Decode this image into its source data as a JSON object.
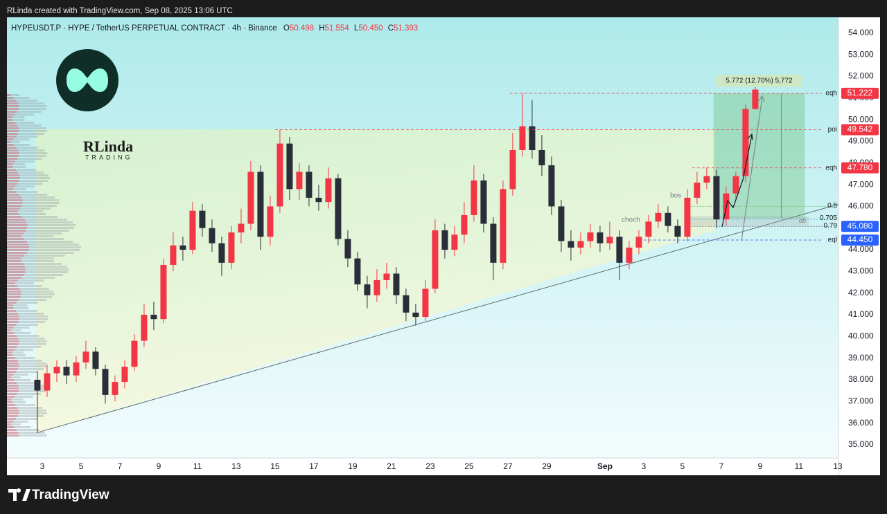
{
  "header": {
    "credit": "RLinda created with TradingView.com, Sep 08, 2025 13:06 UTC"
  },
  "logo": {
    "name": "RLinda",
    "sub": "TRADING"
  },
  "footer": {
    "brand": "TradingView"
  },
  "chart_data": {
    "type": "candlestick",
    "title": "HYPEUSDT.P · HYPE / TetherUS PERPETUAL CONTRACT · 4h · Binance",
    "ohlc": [
      {
        "key": "O",
        "value": "50.498"
      },
      {
        "key": "H",
        "value": "51.554"
      },
      {
        "key": "L",
        "value": "50.450"
      },
      {
        "key": "C",
        "value": "51.393"
      }
    ],
    "up_color": "#f23645",
    "down_color": "#2a2e39",
    "x": [
      1.75,
      2.25,
      2.75,
      3.25,
      3.75,
      4.25,
      4.75,
      5.25,
      5.75,
      6.25,
      6.75,
      7.25,
      7.75,
      8.25,
      8.75,
      9.25,
      9.75,
      10.25,
      10.75,
      11.25,
      11.75,
      12.25,
      12.75,
      13.25,
      13.75,
      14.25,
      14.75,
      15.25,
      15.75,
      16.25,
      16.75,
      17.25,
      17.75,
      18.25,
      18.75,
      19.25,
      19.75,
      20.25,
      20.75,
      21.25,
      21.75,
      22.25,
      22.75,
      23.25,
      23.75,
      24.25,
      24.75,
      25.25,
      25.75,
      26.25,
      26.75,
      27.25,
      27.75,
      28.25,
      28.75,
      29.25,
      29.75,
      30.25,
      30.75,
      31.25,
      31.75,
      32.25,
      32.75,
      33.25,
      33.75,
      34.25,
      34.75,
      35.25,
      35.75,
      36.25,
      36.75,
      37.25,
      37.75,
      38.25,
      38.75
    ],
    "candles": [
      [
        38.0,
        38.4,
        35.6,
        37.5
      ],
      [
        37.5,
        38.7,
        37.2,
        38.3
      ],
      [
        38.3,
        38.9,
        37.9,
        38.6
      ],
      [
        38.6,
        38.9,
        37.8,
        38.2
      ],
      [
        38.2,
        39.1,
        37.9,
        38.8
      ],
      [
        38.8,
        39.8,
        38.5,
        39.3
      ],
      [
        39.3,
        39.5,
        38.2,
        38.5
      ],
      [
        38.5,
        38.7,
        36.9,
        37.3
      ],
      [
        37.3,
        38.2,
        37.0,
        37.9
      ],
      [
        37.9,
        38.9,
        37.6,
        38.6
      ],
      [
        38.6,
        40.1,
        38.4,
        39.8
      ],
      [
        39.8,
        41.5,
        39.5,
        41.0
      ],
      [
        41.0,
        41.6,
        40.3,
        40.8
      ],
      [
        40.8,
        43.6,
        40.6,
        43.3
      ],
      [
        43.3,
        44.8,
        43.0,
        44.2
      ],
      [
        44.2,
        44.6,
        43.5,
        44.0
      ],
      [
        44.0,
        46.2,
        43.8,
        45.8
      ],
      [
        45.8,
        46.1,
        44.6,
        45.0
      ],
      [
        45.0,
        45.4,
        43.9,
        44.3
      ],
      [
        44.3,
        44.6,
        42.8,
        43.4
      ],
      [
        43.4,
        45.1,
        43.1,
        44.8
      ],
      [
        44.8,
        45.9,
        44.3,
        45.2
      ],
      [
        45.2,
        48.1,
        44.9,
        47.6
      ],
      [
        47.6,
        47.9,
        44.0,
        44.6
      ],
      [
        44.6,
        46.5,
        44.2,
        46.0
      ],
      [
        46.0,
        49.54,
        45.7,
        48.9
      ],
      [
        48.9,
        49.2,
        46.3,
        46.8
      ],
      [
        46.8,
        48.0,
        46.3,
        47.6
      ],
      [
        47.6,
        47.9,
        46.0,
        46.4
      ],
      [
        46.4,
        47.0,
        45.8,
        46.2
      ],
      [
        46.2,
        47.8,
        45.9,
        47.3
      ],
      [
        47.3,
        47.5,
        44.2,
        44.5
      ],
      [
        44.5,
        44.9,
        43.2,
        43.6
      ],
      [
        43.6,
        43.9,
        42.1,
        42.4
      ],
      [
        42.4,
        42.8,
        41.3,
        41.9
      ],
      [
        41.9,
        43.1,
        41.6,
        42.6
      ],
      [
        42.6,
        43.4,
        42.2,
        42.9
      ],
      [
        42.9,
        43.2,
        41.5,
        41.9
      ],
      [
        41.9,
        42.2,
        40.7,
        41.1
      ],
      [
        41.1,
        41.5,
        40.5,
        40.9
      ],
      [
        40.9,
        42.6,
        40.7,
        42.2
      ],
      [
        42.2,
        45.4,
        42.0,
        44.9
      ],
      [
        44.9,
        45.2,
        43.6,
        44.0
      ],
      [
        44.0,
        45.1,
        43.7,
        44.7
      ],
      [
        44.7,
        46.2,
        44.3,
        45.6
      ],
      [
        45.6,
        47.9,
        45.3,
        47.2
      ],
      [
        47.2,
        47.5,
        44.8,
        45.2
      ],
      [
        45.2,
        45.5,
        42.6,
        43.4
      ],
      [
        43.4,
        47.2,
        43.1,
        46.8
      ],
      [
        46.8,
        49.4,
        46.5,
        48.6
      ],
      [
        48.6,
        51.222,
        48.3,
        49.7
      ],
      [
        49.7,
        50.9,
        48.2,
        48.6
      ],
      [
        48.6,
        49.3,
        47.4,
        47.9
      ],
      [
        47.9,
        48.3,
        45.6,
        46.0
      ],
      [
        46.0,
        46.3,
        43.9,
        44.4
      ],
      [
        44.4,
        44.9,
        43.5,
        44.1
      ],
      [
        44.1,
        44.8,
        43.8,
        44.4
      ],
      [
        44.4,
        45.2,
        44.1,
        44.8
      ],
      [
        44.8,
        45.1,
        43.9,
        44.3
      ],
      [
        44.3,
        45.3,
        44.0,
        44.6
      ],
      [
        44.6,
        44.9,
        42.6,
        43.4
      ],
      [
        43.4,
        44.4,
        43.1,
        44.1
      ],
      [
        44.1,
        44.9,
        43.8,
        44.6
      ],
      [
        44.6,
        45.6,
        44.3,
        45.3
      ],
      [
        45.3,
        46.1,
        45.0,
        45.7
      ],
      [
        45.7,
        46.0,
        44.8,
        45.1
      ],
      [
        45.1,
        45.4,
        44.3,
        44.6
      ],
      [
        44.6,
        46.8,
        44.4,
        46.4
      ],
      [
        46.4,
        47.6,
        46.1,
        47.1
      ],
      [
        47.1,
        47.8,
        46.8,
        47.4
      ],
      [
        47.4,
        47.7,
        45.0,
        45.4
      ],
      [
        45.4,
        46.9,
        45.1,
        46.6
      ],
      [
        46.6,
        47.6,
        46.3,
        47.4
      ],
      [
        47.4,
        50.7,
        47.1,
        50.498
      ],
      [
        50.498,
        51.554,
        50.45,
        51.393
      ]
    ],
    "xlim": [
      0.18,
      43.04
    ],
    "xticks": [
      {
        "value": 2,
        "label": "3"
      },
      {
        "value": 4,
        "label": "5"
      },
      {
        "value": 6,
        "label": "7"
      },
      {
        "value": 8,
        "label": "9"
      },
      {
        "value": 10,
        "label": "11"
      },
      {
        "value": 12,
        "label": "13"
      },
      {
        "value": 14,
        "label": "15"
      },
      {
        "value": 16,
        "label": "17"
      },
      {
        "value": 18,
        "label": "19"
      },
      {
        "value": 20,
        "label": "21"
      },
      {
        "value": 22,
        "label": "23"
      },
      {
        "value": 24,
        "label": "25"
      },
      {
        "value": 26,
        "label": "27"
      },
      {
        "value": 28,
        "label": "29"
      },
      {
        "value": 31,
        "label": "Sep"
      },
      {
        "value": 33,
        "label": "3"
      },
      {
        "value": 35,
        "label": "5"
      },
      {
        "value": 37,
        "label": "7"
      },
      {
        "value": 39,
        "label": "9"
      },
      {
        "value": 41,
        "label": "11"
      },
      {
        "value": 43,
        "label": "13"
      }
    ],
    "ylim": [
      34.39,
      54.73
    ],
    "yticks": [
      {
        "value": 35,
        "label": "35.000"
      },
      {
        "value": 36,
        "label": "36.000"
      },
      {
        "value": 37,
        "label": "37.000"
      },
      {
        "value": 38,
        "label": "38.000"
      },
      {
        "value": 39,
        "label": "39.000"
      },
      {
        "value": 40,
        "label": "40.000"
      },
      {
        "value": 41,
        "label": "41.000"
      },
      {
        "value": 42,
        "label": "42.000"
      },
      {
        "value": 43,
        "label": "43.000"
      },
      {
        "value": 44,
        "label": "44.000"
      },
      {
        "value": 45,
        "label": "45.000"
      },
      {
        "value": 46,
        "label": "46.000"
      },
      {
        "value": 47,
        "label": "47.000"
      },
      {
        "value": 48,
        "label": "48.000"
      },
      {
        "value": 49,
        "label": "49.000"
      },
      {
        "value": 50,
        "label": "50.000"
      },
      {
        "value": 51,
        "label": "51.000"
      },
      {
        "value": 52,
        "label": "52.000"
      },
      {
        "value": 53,
        "label": "53.000"
      },
      {
        "value": 54,
        "label": "54.000"
      }
    ],
    "levels": [
      {
        "name": "eqh",
        "value": 51.222,
        "label": "51.222",
        "color": "#f23645",
        "from": 26.1
      },
      {
        "name": "poi",
        "value": 49.542,
        "label": "49.542",
        "color": "#f23645",
        "from": 14.0
      },
      {
        "name": "eqh",
        "value": 47.78,
        "label": "47.780",
        "color": "#f23645",
        "from": 35.5
      },
      {
        "name": "eql",
        "value": 44.45,
        "label": "44.450",
        "color": "#2962ff",
        "from": 33.0
      }
    ],
    "fib": [
      {
        "name": "0.5",
        "value": 46.0,
        "color": "#7cc47f"
      },
      {
        "name": "0.705",
        "value": 45.42,
        "color": "#26b6d6"
      },
      {
        "name": "0.79",
        "value": 45.08,
        "color": "#787b86",
        "label": "45.080",
        "tag_color": "#2962ff"
      }
    ],
    "fib_range": [
      35.3,
      42.6
    ],
    "trendline": {
      "x": [
        1.7,
        43.04
      ],
      "y": [
        35.55,
        46.1
      ]
    },
    "position": {
      "from": 36.6,
      "to": 41.3,
      "entry": 45.45,
      "target": 51.222,
      "label": "5.772 (12.70%) 5,772"
    },
    "order_block": {
      "from": 35.2,
      "to": 41.5,
      "top": 45.55,
      "bottom": 45.1,
      "label": "ob"
    },
    "annotations": {
      "bos": "bos",
      "choch": "choch"
    }
  }
}
